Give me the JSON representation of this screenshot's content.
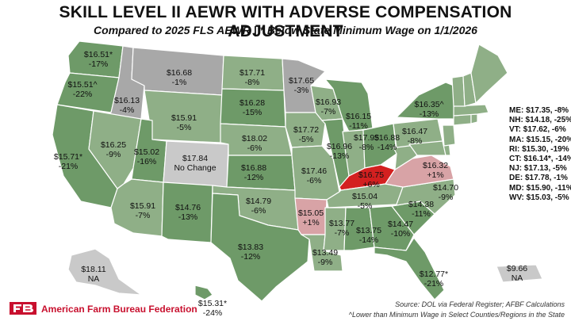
{
  "title": "SKILL LEVEL II AEWR WITH ADVERSE COMPENSATION ADJUSTMENT",
  "subtitle": "Compared to 2025 FLS AEWR  | * Below State Minimum Wage on 1/1/2026",
  "colors": {
    "decrease": "#8faf87",
    "decrease_strong": "#6e9a68",
    "no_change": "#c9c9c9",
    "increase_small": "#d8a3a6",
    "increase_large": "#d32020",
    "state_stroke": "#ffffff"
  },
  "states": {
    "WA": {
      "value": "$16.51*",
      "change": "-17%"
    },
    "OR": {
      "value": "$15.51^",
      "change": "-22%"
    },
    "CA": {
      "value": "$15.71*",
      "change": "-21%"
    },
    "ID": {
      "value": "$16.13",
      "change": "-4%"
    },
    "NV": {
      "value": "$16.25",
      "change": "-9%"
    },
    "MT": {
      "value": "$16.68",
      "change": "-1%"
    },
    "WY": {
      "value": "$15.91",
      "change": "-5%"
    },
    "UT": {
      "value": "$15.02",
      "change": "-16%"
    },
    "CO": {
      "value": "$17.84",
      "change": "No Change"
    },
    "AZ": {
      "value": "$15.91",
      "change": "-7%"
    },
    "NM": {
      "value": "$14.76",
      "change": "-13%"
    },
    "ND": {
      "value": "$17.71",
      "change": "-8%"
    },
    "SD": {
      "value": "$16.28",
      "change": "-15%"
    },
    "NE": {
      "value": "$18.02",
      "change": "-6%"
    },
    "KS": {
      "value": "$16.88",
      "change": "-12%"
    },
    "OK": {
      "value": "$14.79",
      "change": "-6%"
    },
    "TX": {
      "value": "$13.83",
      "change": "-12%"
    },
    "MN": {
      "value": "$17.65",
      "change": "-3%"
    },
    "IA": {
      "value": "$17.72",
      "change": "-5%"
    },
    "MO": {
      "value": "$17.46",
      "change": "-6%"
    },
    "AR": {
      "value": "$15.05",
      "change": "+1%"
    },
    "LA": {
      "value": "$13.49",
      "change": "-9%"
    },
    "WI": {
      "value": "$16.93",
      "change": "-7%"
    },
    "IL": {
      "value": "$16.96",
      "change": "-13%"
    },
    "MI": {
      "value": "$16.15",
      "change": "-11%"
    },
    "IN": {
      "value": "$17.95",
      "change": "-8%"
    },
    "OH": {
      "value": "$16.88",
      "change": "-14%"
    },
    "KY": {
      "value": "$16.75",
      "change": "+6%"
    },
    "TN": {
      "value": "$15.04",
      "change": "-5%"
    },
    "MS": {
      "value": "$13.77",
      "change": "-7%"
    },
    "AL": {
      "value": "$13.75",
      "change": "-14%"
    },
    "GA": {
      "value": "$14.47",
      "change": "-10%"
    },
    "SC": {
      "value": "$14.38",
      "change": "-11%"
    },
    "NC": {
      "value": "$14.70",
      "change": "-9%"
    },
    "VA": {
      "value": "$16.32",
      "change": "+1%"
    },
    "PA": {
      "value": "$16.47",
      "change": "-8%"
    },
    "NY": {
      "value": "$16.35^",
      "change": "-13%"
    },
    "FL": {
      "value": "$12.77*",
      "change": "-21%"
    },
    "AK": {
      "value": "$18.11",
      "change": "NA"
    },
    "HI": {
      "value": "$15.31*",
      "change": "-24%"
    },
    "PR": {
      "value": "$9.66",
      "change": "NA"
    }
  },
  "northeast_list": [
    "ME: $17.35, -8%",
    "NH: $14.18, -25%",
    "VT: $17.62, -6%",
    "MA: $15.15, -20%",
    "RI: $15.30, -19%",
    "CT: $16.14*, -14%",
    "NJ: $17.13, -5%",
    "DE: $17.78, -1%",
    "MD: $15.90, -11%",
    "WV: $15.03, -5%"
  ],
  "footer": {
    "org": "American Farm Bureau Federation",
    "source_line1": "Source: DOL via Federal Register; AFBF Calculations",
    "source_line2": "^Lower than Minimum Wage in Select Counties/Regions in the State"
  }
}
